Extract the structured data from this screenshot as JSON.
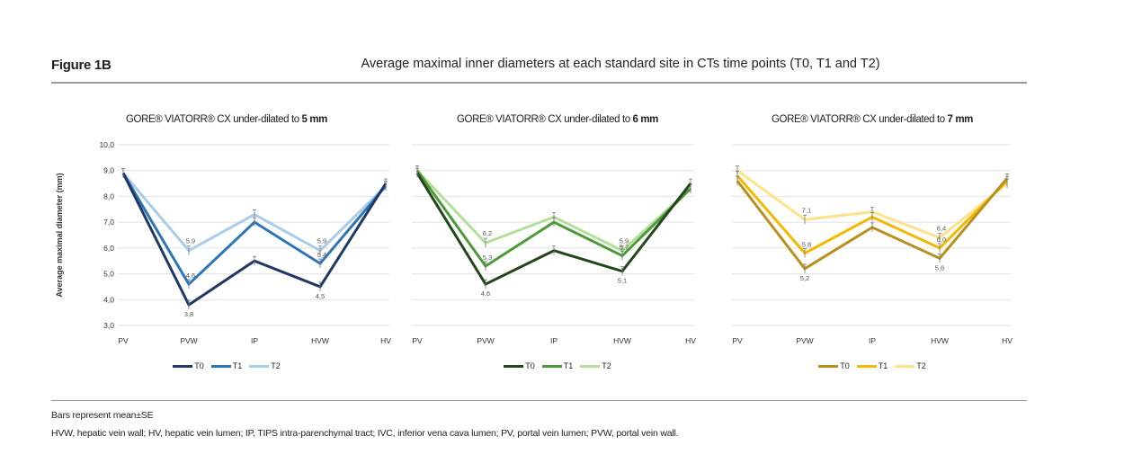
{
  "figure_label": "Figure 1B",
  "title": "Average maximal inner diameters at each standard site in CTs time points (T0, T1 and T2)",
  "footnotes": {
    "bars": "Bars represent mean±SE",
    "abbreviations": "HVW, hepatic vein wall; HV, hepatic vein lumen; IP, TIPS intra-parenchymal tract; IVC, inferior vena cava lumen; PV, portal vein lumen; PVW, portal vein wall."
  },
  "chart_data": [
    {
      "type": "line",
      "title_prefix": "GORE® VIATORR® CX under-dilated to ",
      "title_bold": "5 mm",
      "ylabel": "Average maximal diameter (mm)",
      "ylim": [
        3.0,
        10.0
      ],
      "yticks": [
        "3,0",
        "4,0",
        "5,0",
        "6,0",
        "7,0",
        "8,0",
        "9,0",
        "10,0"
      ],
      "categories": [
        "PV",
        "PVW",
        "IP",
        "HVW",
        "HV"
      ],
      "grid": true,
      "legend": "bottom",
      "series": [
        {
          "name": "T0",
          "color": "#1f3864",
          "values": [
            8.9,
            3.8,
            5.5,
            4.5,
            8.5
          ],
          "labels": [
            null,
            "3,8",
            null,
            "4,5",
            null
          ]
        },
        {
          "name": "T1",
          "color": "#2e75b6",
          "values": [
            8.9,
            4.6,
            7.0,
            5.4,
            8.4
          ],
          "labels": [
            null,
            "4,6",
            null,
            "5,4",
            null
          ]
        },
        {
          "name": "T2",
          "color": "#a9cce8",
          "values": [
            8.9,
            5.9,
            7.3,
            5.9,
            8.4
          ],
          "labels": [
            null,
            "5,9",
            null,
            "5,9",
            null
          ]
        }
      ]
    },
    {
      "type": "line",
      "title_prefix": "GORE® VIATORR® CX under-dilated to ",
      "title_bold": "6 mm",
      "ylabel": "",
      "ylim": [
        3.0,
        10.0
      ],
      "yticks": [],
      "categories": [
        "PV",
        "PVW",
        "IP",
        "HVW",
        "HV"
      ],
      "grid": true,
      "legend": "bottom",
      "series": [
        {
          "name": "T0",
          "color": "#23461d",
          "values": [
            8.9,
            4.6,
            5.9,
            5.1,
            8.5
          ],
          "labels": [
            null,
            "4,6",
            null,
            "5,1",
            null
          ]
        },
        {
          "name": "T1",
          "color": "#4e9a3a",
          "values": [
            9.0,
            5.3,
            7.0,
            5.7,
            8.3
          ],
          "labels": [
            null,
            "5,3",
            null,
            "5,7",
            null
          ]
        },
        {
          "name": "T2",
          "color": "#b2df9c",
          "values": [
            9.0,
            6.2,
            7.2,
            5.9,
            8.3
          ],
          "labels": [
            null,
            "6,2",
            null,
            "5,9",
            null
          ]
        }
      ]
    },
    {
      "type": "line",
      "title_prefix": "GORE® VIATORR® CX under-dilated to ",
      "title_bold": "7 mm",
      "ylabel": "",
      "ylim": [
        3.0,
        10.0
      ],
      "yticks": [],
      "categories": [
        "PV",
        "PVW",
        "IP",
        "HVW",
        "HV"
      ],
      "grid": true,
      "legend": "bottom",
      "series": [
        {
          "name": "T0",
          "color": "#b8901f",
          "values": [
            8.6,
            5.2,
            6.8,
            5.6,
            8.7
          ],
          "labels": [
            null,
            "5,2",
            null,
            "5,6",
            null
          ]
        },
        {
          "name": "T1",
          "color": "#f2b900",
          "values": [
            8.8,
            5.8,
            7.2,
            6.0,
            8.6
          ],
          "labels": [
            null,
            "5,8",
            null,
            "6,0",
            null
          ]
        },
        {
          "name": "T2",
          "color": "#fce28a",
          "values": [
            9.0,
            7.1,
            7.4,
            6.4,
            8.5
          ],
          "labels": [
            null,
            "7,1",
            null,
            "6,4",
            null
          ]
        }
      ]
    }
  ]
}
